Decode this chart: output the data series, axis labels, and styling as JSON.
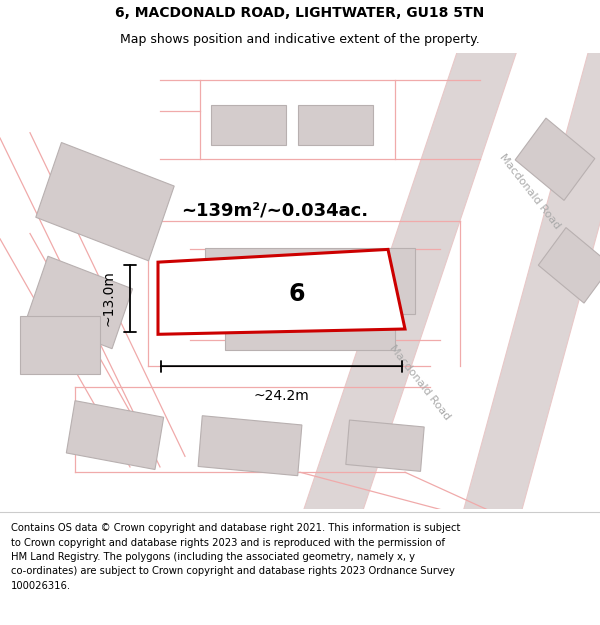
{
  "title": "6, MACDONALD ROAD, LIGHTWATER, GU18 5TN",
  "subtitle": "Map shows position and indicative extent of the property.",
  "footer": "Contains OS data © Crown copyright and database right 2021. This information is subject\nto Crown copyright and database rights 2023 and is reproduced with the permission of\nHM Land Registry. The polygons (including the associated geometry, namely x, y\nco-ordinates) are subject to Crown copyright and database rights 2023 Ordnance Survey\n100026316.",
  "area_label": "~139m²/~0.034ac.",
  "width_label": "~24.2m",
  "height_label": "~13.0m",
  "plot_number": "6",
  "road_label_upper": "Macdonald Road",
  "road_label_lower": "Macdonald Road",
  "map_bg": "#f0eded",
  "road_band_color": "#ddd5d5",
  "road_edge_color": "#e8c8c8",
  "building_face": "#d4cccc",
  "building_edge": "#b8b0b0",
  "property_edge": "#cc0000",
  "line_pink": "#f0aaaa",
  "title_fontsize": 10,
  "subtitle_fontsize": 9,
  "area_fontsize": 13,
  "footer_fontsize": 7.2
}
